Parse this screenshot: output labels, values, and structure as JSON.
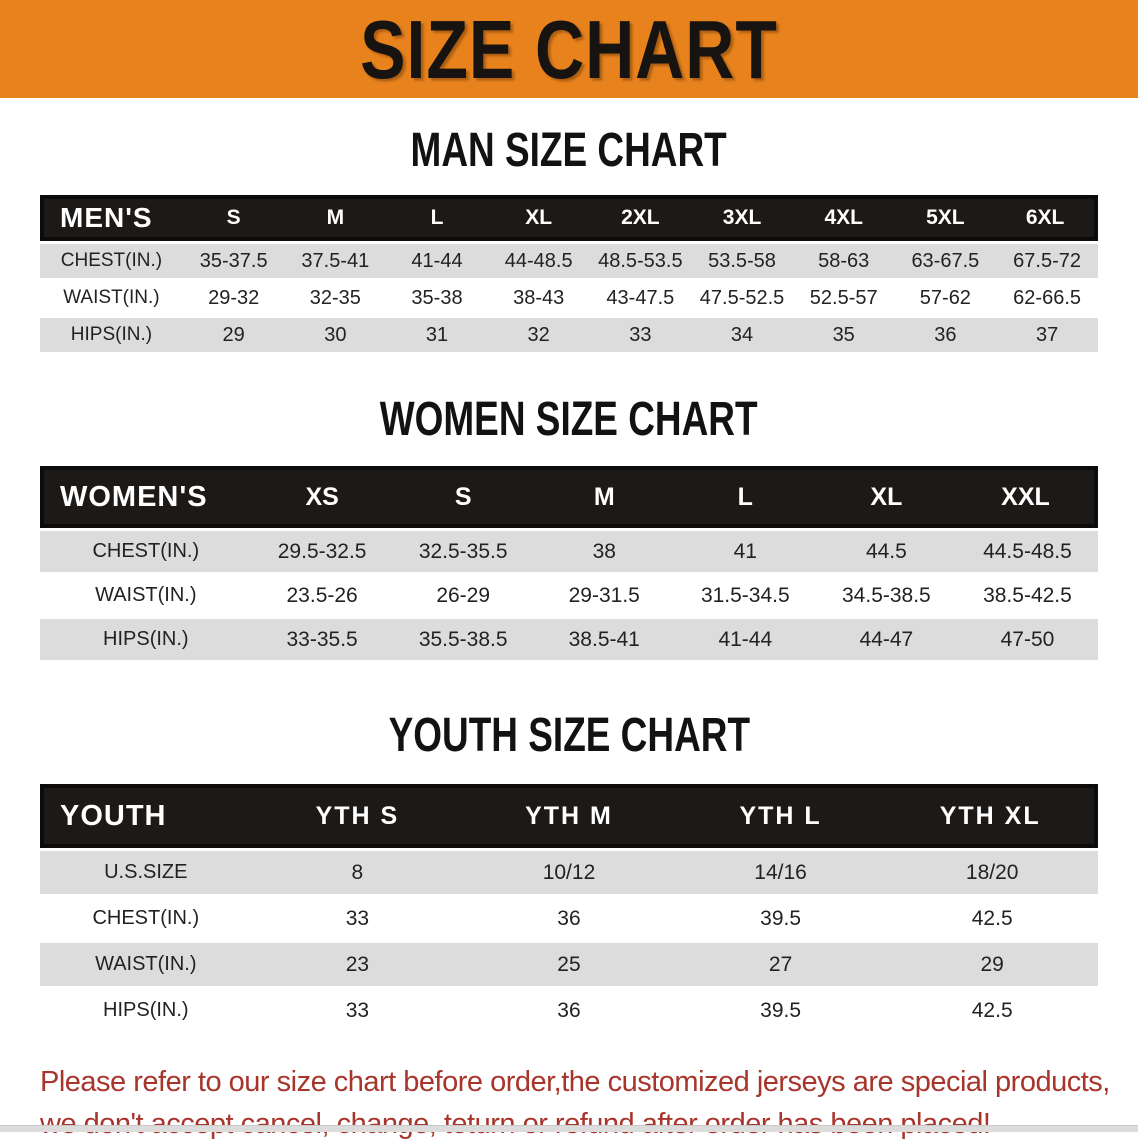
{
  "banner": {
    "title": "SIZE CHART"
  },
  "sections": {
    "men_heading": "MAN SIZE CHART",
    "women_heading": "WOMEN SIZE CHART",
    "youth_heading": "YOUTH SIZE CHART"
  },
  "tables": {
    "men": {
      "label": "MEN'S",
      "columns": [
        "S",
        "M",
        "L",
        "XL",
        "2XL",
        "3XL",
        "4XL",
        "5XL",
        "6XL"
      ],
      "rows": [
        {
          "label": "CHEST(IN.)",
          "values": [
            "35-37.5",
            "37.5-41",
            "41-44",
            "44-48.5",
            "48.5-53.5",
            "53.5-58",
            "58-63",
            "63-67.5",
            "67.5-72"
          ]
        },
        {
          "label": "WAIST(IN.)",
          "values": [
            "29-32",
            "32-35",
            "35-38",
            "38-43",
            "43-47.5",
            "47.5-52.5",
            "52.5-57",
            "57-62",
            "62-66.5"
          ]
        },
        {
          "label": "HIPS(IN.)",
          "values": [
            "29",
            "30",
            "31",
            "32",
            "33",
            "34",
            "35",
            "36",
            "37"
          ]
        }
      ]
    },
    "women": {
      "label": "WOMEN'S",
      "columns": [
        "XS",
        "S",
        "M",
        "L",
        "XL",
        "XXL"
      ],
      "rows": [
        {
          "label": "CHEST(IN.)",
          "values": [
            "29.5-32.5",
            "32.5-35.5",
            "38",
            "41",
            "44.5",
            "44.5-48.5"
          ]
        },
        {
          "label": "WAIST(IN.)",
          "values": [
            "23.5-26",
            "26-29",
            "29-31.5",
            "31.5-34.5",
            "34.5-38.5",
            "38.5-42.5"
          ]
        },
        {
          "label": "HIPS(IN.)",
          "values": [
            "33-35.5",
            "35.5-38.5",
            "38.5-41",
            "41-44",
            "44-47",
            "47-50"
          ]
        }
      ]
    },
    "youth": {
      "label": "YOUTH",
      "columns": [
        "YTH S",
        "YTH M",
        "YTH L",
        "YTH XL"
      ],
      "rows": [
        {
          "label": "U.S.SIZE",
          "values": [
            "8",
            "10/12",
            "14/16",
            "18/20"
          ]
        },
        {
          "label": "CHEST(IN.)",
          "values": [
            "33",
            "36",
            "39.5",
            "42.5"
          ]
        },
        {
          "label": "WAIST(IN.)",
          "values": [
            "23",
            "25",
            "27",
            "29"
          ]
        },
        {
          "label": "HIPS(IN.)",
          "values": [
            "33",
            "36",
            "39.5",
            "42.5"
          ]
        }
      ]
    }
  },
  "footer": {
    "line1": "Please refer to our size chart before order,the customized jerseys are special products,",
    "line2": "we don't accept cancel, change, teturn or refund after order has been placed!"
  },
  "colors": {
    "banner_orange": "#E8821D",
    "header_fill": "#1d1917",
    "header_frame": "#0b0b0b",
    "row_shade": "#DCDCDC",
    "footer_red": "#A8352B"
  }
}
